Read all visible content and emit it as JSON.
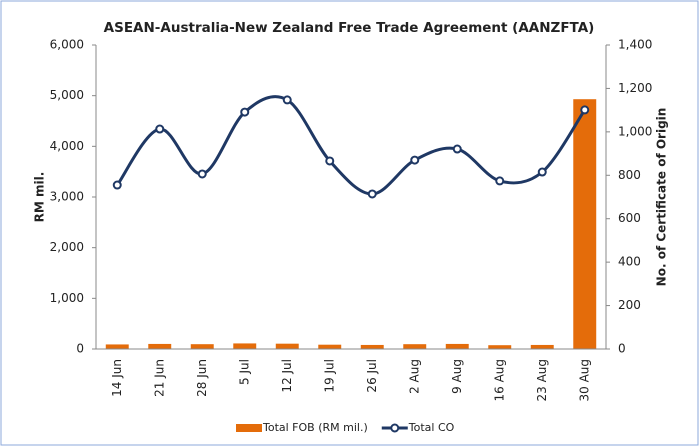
{
  "chart_data": {
    "type": "bar_line",
    "title": "ASEAN-Australia-New Zealand Free Trade Agreement (AANZFTA)",
    "y_label": "RM mil.",
    "y2_label": "No. of Certificate of Origin",
    "categories": [
      "14 Jun",
      "21 Jun",
      "28 Jun",
      "5 Jul",
      "12 Jul",
      "19 Jul",
      "26 Jul",
      "2 Aug",
      "9 Aug",
      "16 Aug",
      "23 Aug",
      "30 Aug"
    ],
    "series": [
      {
        "name": "Total FOB (RM mil.)",
        "color": "#e46c0a",
        "kind": "bar",
        "values": [
          90,
          100,
          95,
          110,
          105,
          85,
          80,
          95,
          100,
          75,
          80,
          4930
        ]
      },
      {
        "name": "Total CO",
        "color": "#1f3864",
        "kind": "line",
        "axis": "y2",
        "values": [
          755,
          1013,
          806,
          1091,
          1147,
          866,
          714,
          870,
          921,
          774,
          815,
          1101
        ]
      }
    ],
    "ylim": [
      0,
      6000
    ],
    "yticks": [
      0,
      {
        "value": 1000,
        "label": "1,000"
      },
      {
        "value": 2000,
        "label": "2,000"
      },
      {
        "value": 3000,
        "label": "3,000"
      },
      {
        "value": 4000,
        "label": "4,000"
      },
      {
        "value": 5000,
        "label": "5,000"
      },
      {
        "value": 6000,
        "label": "6,000"
      }
    ],
    "y2lim": [
      0,
      1400
    ],
    "y2ticks": [
      0,
      200,
      400,
      600,
      800,
      {
        "value": 1000,
        "label": "1,000"
      },
      {
        "value": 1200,
        "label": "1,200"
      },
      {
        "value": 1400,
        "label": "1,400"
      }
    ],
    "legend": "bottom"
  }
}
